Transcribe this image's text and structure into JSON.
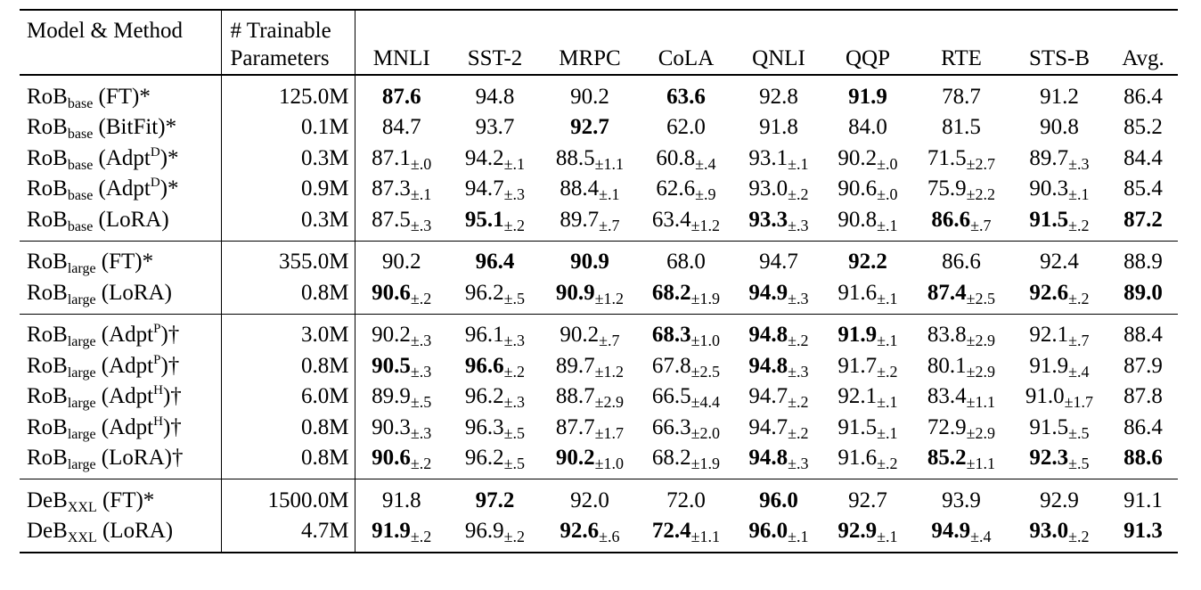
{
  "header": {
    "model_method": "Model & Method",
    "trainable_line1": "# Trainable",
    "trainable_line2": "Parameters",
    "columns": [
      "MNLI",
      "SST-2",
      "MRPC",
      "CoLA",
      "QNLI",
      "QQP",
      "RTE",
      "STS-B",
      "Avg."
    ]
  },
  "groups": [
    {
      "rows": [
        {
          "base": "RoB",
          "sub": "base",
          "pre": " (FT)",
          "sup": "",
          "post": "*",
          "params": "125.0M",
          "cells": [
            {
              "v": "87.6",
              "b": true,
              "s": ""
            },
            {
              "v": "94.8",
              "b": false,
              "s": ""
            },
            {
              "v": "90.2",
              "b": false,
              "s": ""
            },
            {
              "v": "63.6",
              "b": true,
              "s": ""
            },
            {
              "v": "92.8",
              "b": false,
              "s": ""
            },
            {
              "v": "91.9",
              "b": true,
              "s": ""
            },
            {
              "v": "78.7",
              "b": false,
              "s": ""
            },
            {
              "v": "91.2",
              "b": false,
              "s": ""
            },
            {
              "v": "86.4",
              "b": false,
              "s": ""
            }
          ]
        },
        {
          "base": "RoB",
          "sub": "base",
          "pre": " (BitFit)",
          "sup": "",
          "post": "*",
          "params": "0.1M",
          "cells": [
            {
              "v": "84.7",
              "b": false,
              "s": ""
            },
            {
              "v": "93.7",
              "b": false,
              "s": ""
            },
            {
              "v": "92.7",
              "b": true,
              "s": ""
            },
            {
              "v": "62.0",
              "b": false,
              "s": ""
            },
            {
              "v": "91.8",
              "b": false,
              "s": ""
            },
            {
              "v": "84.0",
              "b": false,
              "s": ""
            },
            {
              "v": "81.5",
              "b": false,
              "s": ""
            },
            {
              "v": "90.8",
              "b": false,
              "s": ""
            },
            {
              "v": "85.2",
              "b": false,
              "s": ""
            }
          ]
        },
        {
          "base": "RoB",
          "sub": "base",
          "pre": " (Adpt",
          "sup": "D",
          "post": ")*",
          "params": "0.3M",
          "cells": [
            {
              "v": "87.1",
              "b": false,
              "s": "±.0"
            },
            {
              "v": "94.2",
              "b": false,
              "s": "±.1"
            },
            {
              "v": "88.5",
              "b": false,
              "s": "±1.1"
            },
            {
              "v": "60.8",
              "b": false,
              "s": "±.4"
            },
            {
              "v": "93.1",
              "b": false,
              "s": "±.1"
            },
            {
              "v": "90.2",
              "b": false,
              "s": "±.0"
            },
            {
              "v": "71.5",
              "b": false,
              "s": "±2.7"
            },
            {
              "v": "89.7",
              "b": false,
              "s": "±.3"
            },
            {
              "v": "84.4",
              "b": false,
              "s": ""
            }
          ]
        },
        {
          "base": "RoB",
          "sub": "base",
          "pre": " (Adpt",
          "sup": "D",
          "post": ")*",
          "params": "0.9M",
          "cells": [
            {
              "v": "87.3",
              "b": false,
              "s": "±.1"
            },
            {
              "v": "94.7",
              "b": false,
              "s": "±.3"
            },
            {
              "v": "88.4",
              "b": false,
              "s": "±.1"
            },
            {
              "v": "62.6",
              "b": false,
              "s": "±.9"
            },
            {
              "v": "93.0",
              "b": false,
              "s": "±.2"
            },
            {
              "v": "90.6",
              "b": false,
              "s": "±.0"
            },
            {
              "v": "75.9",
              "b": false,
              "s": "±2.2"
            },
            {
              "v": "90.3",
              "b": false,
              "s": "±.1"
            },
            {
              "v": "85.4",
              "b": false,
              "s": ""
            }
          ]
        },
        {
          "base": "RoB",
          "sub": "base",
          "pre": " (LoRA)",
          "sup": "",
          "post": "",
          "params": "0.3M",
          "cells": [
            {
              "v": "87.5",
              "b": false,
              "s": "±.3"
            },
            {
              "v": "95.1",
              "b": true,
              "s": "±.2"
            },
            {
              "v": "89.7",
              "b": false,
              "s": "±.7"
            },
            {
              "v": "63.4",
              "b": false,
              "s": "±1.2"
            },
            {
              "v": "93.3",
              "b": true,
              "s": "±.3"
            },
            {
              "v": "90.8",
              "b": false,
              "s": "±.1"
            },
            {
              "v": "86.6",
              "b": true,
              "s": "±.7"
            },
            {
              "v": "91.5",
              "b": true,
              "s": "±.2"
            },
            {
              "v": "87.2",
              "b": true,
              "s": ""
            }
          ]
        }
      ]
    },
    {
      "rows": [
        {
          "base": "RoB",
          "sub": "large",
          "pre": " (FT)",
          "sup": "",
          "post": "*",
          "params": "355.0M",
          "cells": [
            {
              "v": "90.2",
              "b": false,
              "s": ""
            },
            {
              "v": "96.4",
              "b": true,
              "s": ""
            },
            {
              "v": "90.9",
              "b": true,
              "s": ""
            },
            {
              "v": "68.0",
              "b": false,
              "s": ""
            },
            {
              "v": "94.7",
              "b": false,
              "s": ""
            },
            {
              "v": "92.2",
              "b": true,
              "s": ""
            },
            {
              "v": "86.6",
              "b": false,
              "s": ""
            },
            {
              "v": "92.4",
              "b": false,
              "s": ""
            },
            {
              "v": "88.9",
              "b": false,
              "s": ""
            }
          ]
        },
        {
          "base": "RoB",
          "sub": "large",
          "pre": " (LoRA)",
          "sup": "",
          "post": "",
          "params": "0.8M",
          "cells": [
            {
              "v": "90.6",
              "b": true,
              "s": "±.2"
            },
            {
              "v": "96.2",
              "b": false,
              "s": "±.5"
            },
            {
              "v": "90.9",
              "b": true,
              "s": "±1.2"
            },
            {
              "v": "68.2",
              "b": true,
              "s": "±1.9"
            },
            {
              "v": "94.9",
              "b": true,
              "s": "±.3"
            },
            {
              "v": "91.6",
              "b": false,
              "s": "±.1"
            },
            {
              "v": "87.4",
              "b": true,
              "s": "±2.5"
            },
            {
              "v": "92.6",
              "b": true,
              "s": "±.2"
            },
            {
              "v": "89.0",
              "b": true,
              "s": ""
            }
          ]
        }
      ]
    },
    {
      "rows": [
        {
          "base": "RoB",
          "sub": "large",
          "pre": " (Adpt",
          "sup": "P",
          "post": ")†",
          "params": "3.0M",
          "cells": [
            {
              "v": "90.2",
              "b": false,
              "s": "±.3"
            },
            {
              "v": "96.1",
              "b": false,
              "s": "±.3"
            },
            {
              "v": "90.2",
              "b": false,
              "s": "±.7"
            },
            {
              "v": "68.3",
              "b": true,
              "s": "±1.0"
            },
            {
              "v": "94.8",
              "b": true,
              "s": "±.2"
            },
            {
              "v": "91.9",
              "b": true,
              "s": "±.1"
            },
            {
              "v": "83.8",
              "b": false,
              "s": "±2.9"
            },
            {
              "v": "92.1",
              "b": false,
              "s": "±.7"
            },
            {
              "v": "88.4",
              "b": false,
              "s": ""
            }
          ]
        },
        {
          "base": "RoB",
          "sub": "large",
          "pre": " (Adpt",
          "sup": "P",
          "post": ")†",
          "params": "0.8M",
          "cells": [
            {
              "v": "90.5",
              "b": true,
              "s": "±.3"
            },
            {
              "v": "96.6",
              "b": true,
              "s": "±.2"
            },
            {
              "v": "89.7",
              "b": false,
              "s": "±1.2"
            },
            {
              "v": "67.8",
              "b": false,
              "s": "±2.5"
            },
            {
              "v": "94.8",
              "b": true,
              "s": "±.3"
            },
            {
              "v": "91.7",
              "b": false,
              "s": "±.2"
            },
            {
              "v": "80.1",
              "b": false,
              "s": "±2.9"
            },
            {
              "v": "91.9",
              "b": false,
              "s": "±.4"
            },
            {
              "v": "87.9",
              "b": false,
              "s": ""
            }
          ]
        },
        {
          "base": "RoB",
          "sub": "large",
          "pre": " (Adpt",
          "sup": "H",
          "post": ")†",
          "params": "6.0M",
          "cells": [
            {
              "v": "89.9",
              "b": false,
              "s": "±.5"
            },
            {
              "v": "96.2",
              "b": false,
              "s": "±.3"
            },
            {
              "v": "88.7",
              "b": false,
              "s": "±2.9"
            },
            {
              "v": "66.5",
              "b": false,
              "s": "±4.4"
            },
            {
              "v": "94.7",
              "b": false,
              "s": "±.2"
            },
            {
              "v": "92.1",
              "b": false,
              "s": "±.1"
            },
            {
              "v": "83.4",
              "b": false,
              "s": "±1.1"
            },
            {
              "v": "91.0",
              "b": false,
              "s": "±1.7"
            },
            {
              "v": "87.8",
              "b": false,
              "s": ""
            }
          ]
        },
        {
          "base": "RoB",
          "sub": "large",
          "pre": " (Adpt",
          "sup": "H",
          "post": ")†",
          "params": "0.8M",
          "cells": [
            {
              "v": "90.3",
              "b": false,
              "s": "±.3"
            },
            {
              "v": "96.3",
              "b": false,
              "s": "±.5"
            },
            {
              "v": "87.7",
              "b": false,
              "s": "±1.7"
            },
            {
              "v": "66.3",
              "b": false,
              "s": "±2.0"
            },
            {
              "v": "94.7",
              "b": false,
              "s": "±.2"
            },
            {
              "v": "91.5",
              "b": false,
              "s": "±.1"
            },
            {
              "v": "72.9",
              "b": false,
              "s": "±2.9"
            },
            {
              "v": "91.5",
              "b": false,
              "s": "±.5"
            },
            {
              "v": "86.4",
              "b": false,
              "s": ""
            }
          ]
        },
        {
          "base": "RoB",
          "sub": "large",
          "pre": " (LoRA)",
          "sup": "",
          "post": "†",
          "params": "0.8M",
          "cells": [
            {
              "v": "90.6",
              "b": true,
              "s": "±.2"
            },
            {
              "v": "96.2",
              "b": false,
              "s": "±.5"
            },
            {
              "v": "90.2",
              "b": true,
              "s": "±1.0"
            },
            {
              "v": "68.2",
              "b": false,
              "s": "±1.9"
            },
            {
              "v": "94.8",
              "b": true,
              "s": "±.3"
            },
            {
              "v": "91.6",
              "b": false,
              "s": "±.2"
            },
            {
              "v": "85.2",
              "b": true,
              "s": "±1.1"
            },
            {
              "v": "92.3",
              "b": true,
              "s": "±.5"
            },
            {
              "v": "88.6",
              "b": true,
              "s": ""
            }
          ]
        }
      ]
    },
    {
      "rows": [
        {
          "base": "DeB",
          "sub": "XXL",
          "pre": " (FT)",
          "sup": "",
          "post": "*",
          "params": "1500.0M",
          "cells": [
            {
              "v": "91.8",
              "b": false,
              "s": ""
            },
            {
              "v": "97.2",
              "b": true,
              "s": ""
            },
            {
              "v": "92.0",
              "b": false,
              "s": ""
            },
            {
              "v": "72.0",
              "b": false,
              "s": ""
            },
            {
              "v": "96.0",
              "b": true,
              "s": ""
            },
            {
              "v": "92.7",
              "b": false,
              "s": ""
            },
            {
              "v": "93.9",
              "b": false,
              "s": ""
            },
            {
              "v": "92.9",
              "b": false,
              "s": ""
            },
            {
              "v": "91.1",
              "b": false,
              "s": ""
            }
          ]
        },
        {
          "base": "DeB",
          "sub": "XXL",
          "pre": " (LoRA)",
          "sup": "",
          "post": "",
          "params": "4.7M",
          "cells": [
            {
              "v": "91.9",
              "b": true,
              "s": "±.2"
            },
            {
              "v": "96.9",
              "b": false,
              "s": "±.2"
            },
            {
              "v": "92.6",
              "b": true,
              "s": "±.6"
            },
            {
              "v": "72.4",
              "b": true,
              "s": "±1.1"
            },
            {
              "v": "96.0",
              "b": true,
              "s": "±.1"
            },
            {
              "v": "92.9",
              "b": true,
              "s": "±.1"
            },
            {
              "v": "94.9",
              "b": true,
              "s": "±.4"
            },
            {
              "v": "93.0",
              "b": true,
              "s": "±.2"
            },
            {
              "v": "91.3",
              "b": true,
              "s": ""
            }
          ]
        }
      ]
    }
  ]
}
